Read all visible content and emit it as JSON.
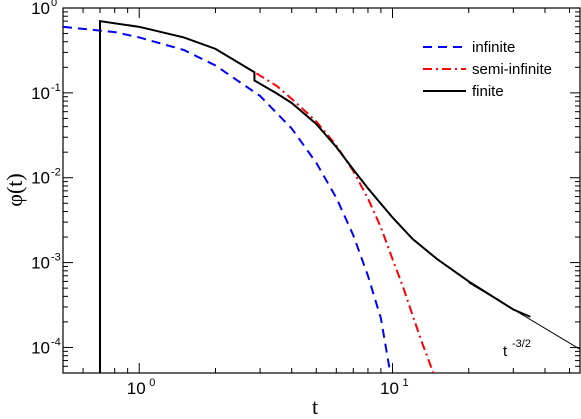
{
  "chart_data": {
    "type": "line",
    "xlabel": "t",
    "ylabel": "φ(t)",
    "xscale": "log",
    "yscale": "log",
    "xlim": [
      0.5,
      55
    ],
    "ylim": [
      5e-05,
      1
    ],
    "x_ticks": [
      {
        "base": "10",
        "exp": "0",
        "value": 1
      },
      {
        "base": "10",
        "exp": "1",
        "value": 10
      }
    ],
    "y_ticks": [
      {
        "base": "10",
        "exp": "0",
        "value": 1
      },
      {
        "base": "10",
        "exp": "-1",
        "value": 0.1
      },
      {
        "base": "10",
        "exp": "-2",
        "value": 0.01
      },
      {
        "base": "10",
        "exp": "-3",
        "value": 0.001
      },
      {
        "base": "10",
        "exp": "-4",
        "value": 0.0001
      }
    ],
    "legend_position": "top-right",
    "series": [
      {
        "name": "infinite",
        "color": "#0000ff",
        "dash": "dashed",
        "points": [
          [
            0.5,
            0.6
          ],
          [
            0.8,
            0.52
          ],
          [
            1.0,
            0.45
          ],
          [
            1.5,
            0.32
          ],
          [
            2.0,
            0.21
          ],
          [
            3.0,
            0.092
          ],
          [
            4.0,
            0.038
          ],
          [
            5.0,
            0.015
          ],
          [
            6.0,
            0.0058
          ],
          [
            7.0,
            0.0021
          ],
          [
            8.0,
            0.0007
          ],
          [
            9.0,
            0.00022
          ],
          [
            9.8,
            5e-05
          ]
        ]
      },
      {
        "name": "semi-infinite",
        "color": "#ff0000",
        "dash": "dash-dot",
        "points": [
          [
            2.9,
            0.17
          ],
          [
            3.5,
            0.12
          ],
          [
            4.0,
            0.085
          ],
          [
            5.0,
            0.046
          ],
          [
            6.0,
            0.024
          ],
          [
            7.0,
            0.012
          ],
          [
            8.0,
            0.0057
          ],
          [
            9.0,
            0.0026
          ],
          [
            10.0,
            0.0011
          ],
          [
            11.0,
            0.00052
          ],
          [
            12.0,
            0.00024
          ],
          [
            13.0,
            0.00012
          ],
          [
            14.5,
            5e-05
          ]
        ]
      },
      {
        "name": "finite",
        "color": "#000000",
        "dash": "solid",
        "points": [
          [
            0.7,
            5e-05
          ],
          [
            0.7,
            0.7
          ],
          [
            1.0,
            0.6
          ],
          [
            1.5,
            0.45
          ],
          [
            2.0,
            0.33
          ],
          [
            2.85,
            0.175
          ],
          [
            2.85,
            0.14
          ],
          [
            3.5,
            0.098
          ],
          [
            4.0,
            0.076
          ],
          [
            5.0,
            0.043
          ],
          [
            6.0,
            0.023
          ],
          [
            7.0,
            0.0125
          ],
          [
            8.0,
            0.0075
          ],
          [
            10.0,
            0.0034
          ],
          [
            12.0,
            0.0019
          ],
          [
            15.0,
            0.0011
          ],
          [
            20.0,
            0.0006
          ],
          [
            30.0,
            0.00028
          ],
          [
            35.0,
            0.00023
          ]
        ]
      }
    ],
    "reference_line": {
      "label_base": "t",
      "label_exp": "-3/2",
      "points": [
        [
          20,
          0.00058
        ],
        [
          55,
          9.5e-05
        ]
      ]
    }
  },
  "colors": {
    "background": "#ffffff",
    "axis": "#000000"
  }
}
